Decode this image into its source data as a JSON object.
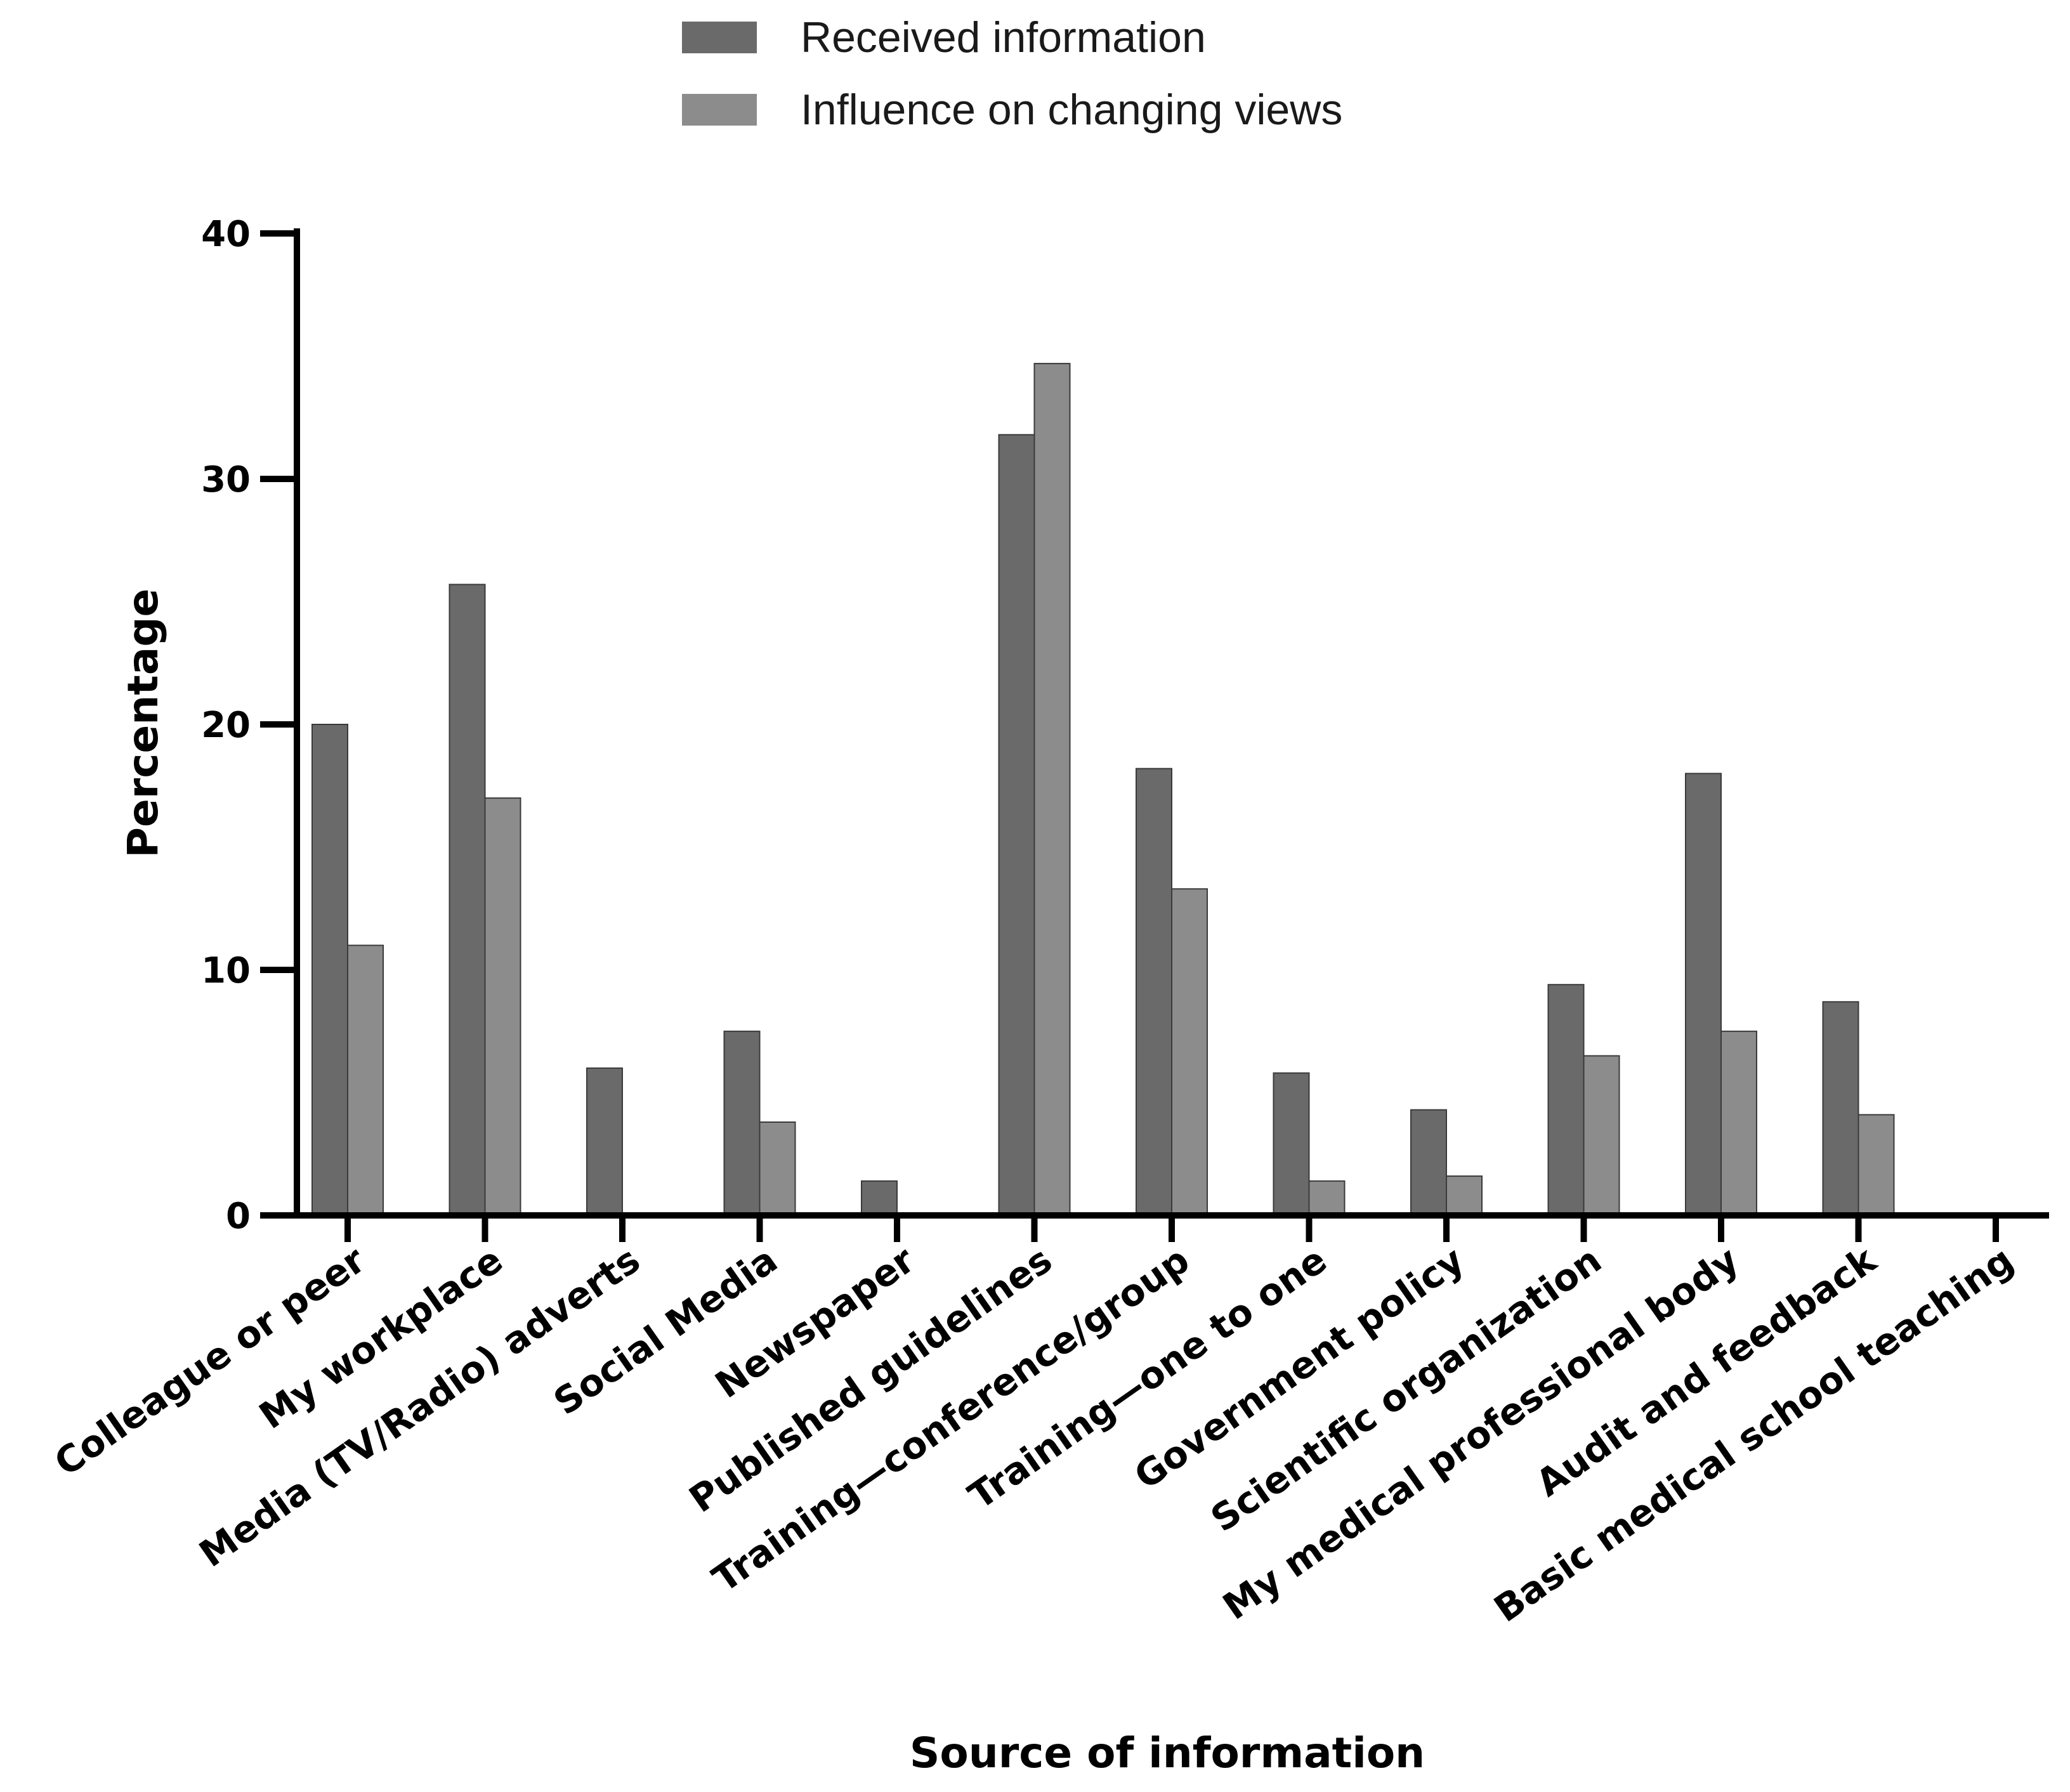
{
  "chart_data": {
    "type": "bar",
    "title": "",
    "xlabel": "Source of information",
    "ylabel": "Percentage",
    "ylim": [
      0,
      40
    ],
    "yticks": [
      0,
      10,
      20,
      30,
      40
    ],
    "grid": false,
    "legend_position": "top-center",
    "categories": [
      "Colleague or peer",
      "My workplace",
      "Media (TV/Radio) adverts",
      "Social Media",
      "Newspaper",
      "Published guidelines",
      "Training—conference/group",
      "Training—one to one",
      "Government policy",
      "Scientific organization",
      "My medical professional body",
      "Audit and feedback",
      "Basic medical school teaching"
    ],
    "series": [
      {
        "name": "Received information",
        "color": "#6a6a6a",
        "values": [
          20.0,
          25.7,
          6.0,
          7.5,
          1.4,
          31.8,
          18.2,
          5.8,
          4.3,
          9.4,
          18.0,
          8.7,
          0
        ]
      },
      {
        "name": "Influence on changing views",
        "color": "#8c8c8c",
        "values": [
          11.0,
          17.0,
          0,
          3.8,
          0,
          34.7,
          13.3,
          1.4,
          1.6,
          6.5,
          7.5,
          4.1,
          0
        ]
      }
    ]
  }
}
